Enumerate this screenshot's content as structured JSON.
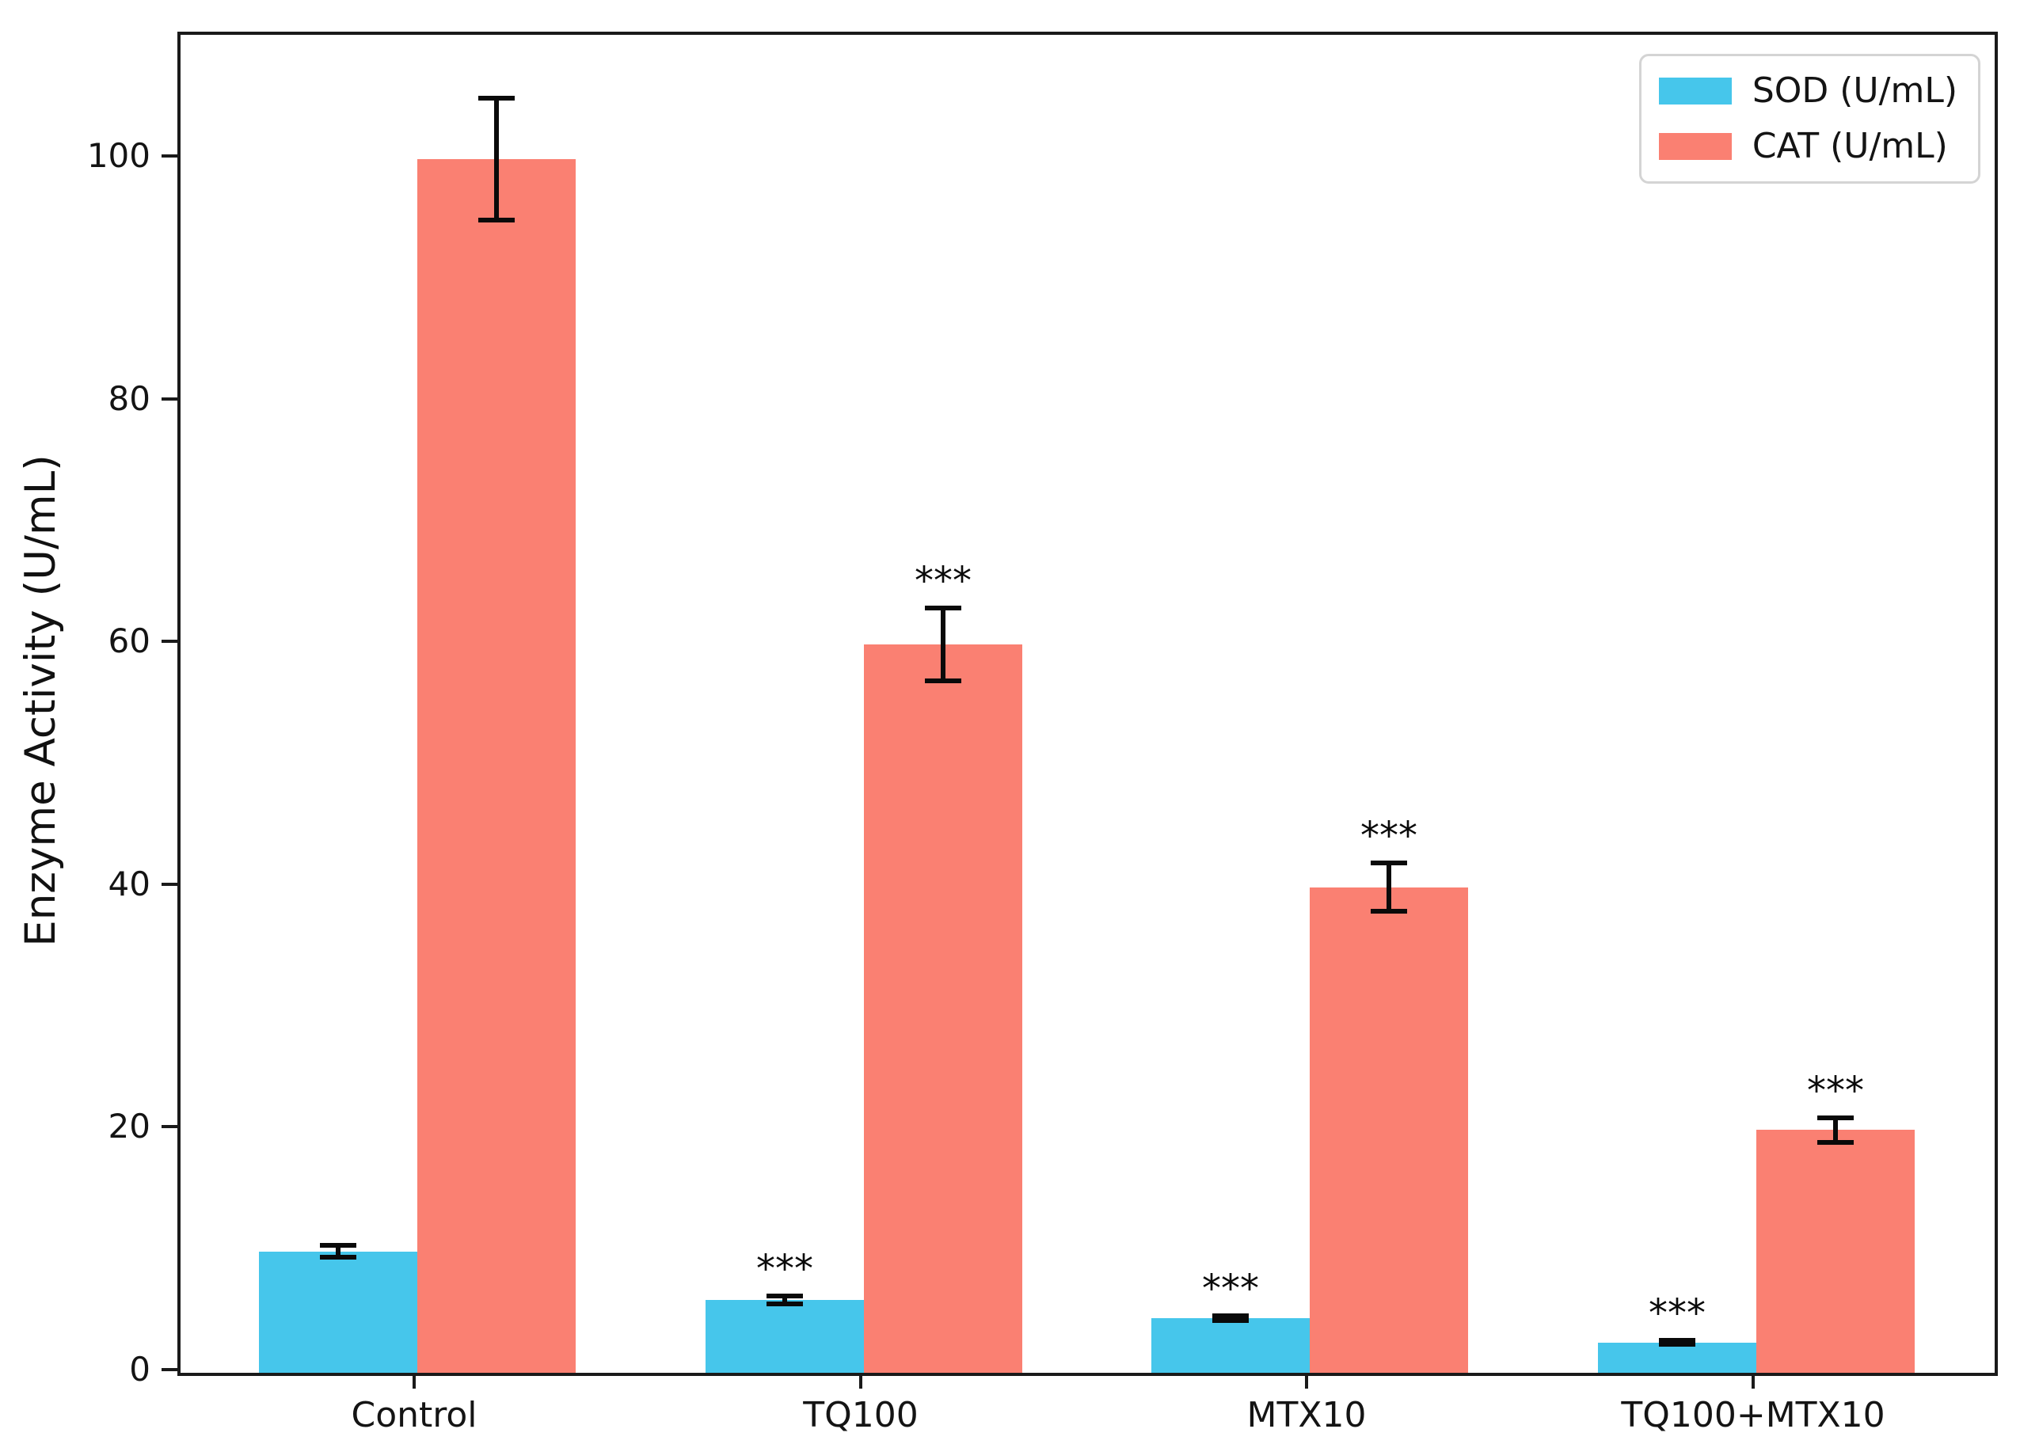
{
  "chart_data": {
    "type": "bar",
    "title": "",
    "categories": [
      "Control",
      "TQ100",
      "MTX10",
      "TQ100+MTX10"
    ],
    "series": [
      {
        "name": "SOD (U/mL)",
        "color": "#46C6EB",
        "values": [
          10,
          6,
          4.5,
          2.5
        ],
        "errors": [
          0.5,
          0.3,
          0.2,
          0.15
        ],
        "significance": [
          "",
          "***",
          "***",
          "***"
        ]
      },
      {
        "name": "CAT (U/mL)",
        "color": "#FA8072",
        "values": [
          100,
          60,
          40,
          20
        ],
        "errors": [
          5,
          3,
          2,
          1
        ],
        "significance": [
          "",
          "***",
          "***",
          "***"
        ]
      }
    ],
    "xlabel": "",
    "ylabel": "Enzyme Activity (U/mL)",
    "yticks": [
      0,
      20,
      40,
      60,
      80,
      100
    ],
    "ylim": [
      0,
      110
    ],
    "grid": false,
    "legend_position": "upper right",
    "error_bars": true,
    "bar_edge": "none",
    "axis_color": "#1a1a1a",
    "significance_marker": "***"
  }
}
